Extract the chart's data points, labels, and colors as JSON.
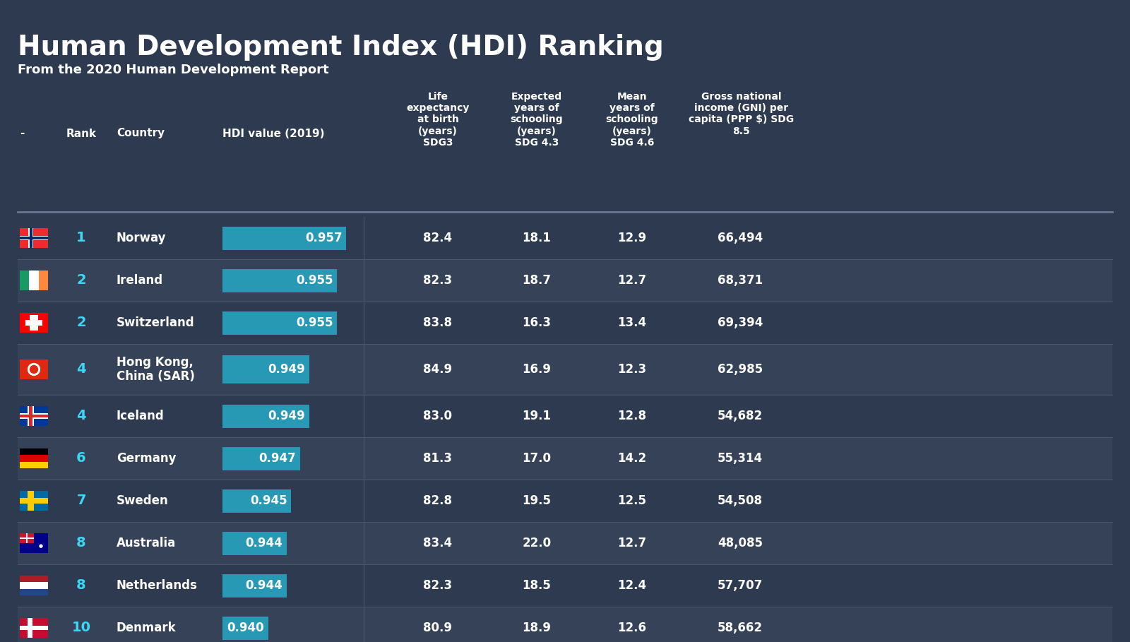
{
  "title": "Human Development Index (HDI) Ranking",
  "subtitle": "From the 2020 Human Development Report",
  "bg_color": "#2e3a50",
  "row_color_dark": "#2e3a50",
  "row_color_light": "#364257",
  "bar_color": "#2899b4",
  "text_color_white": "#ffffff",
  "text_color_cyan": "#3dd6f5",
  "separator_color": "#4a5570",
  "col_header_sep_color": "#6a7590",
  "columns_header": [
    "-",
    "Rank",
    "Country",
    "HDI value (2019)",
    "Life\nexpectancy\nat birth\n(years)\nSDG3",
    "Expected\nyears of\nschooling\n(years)\nSDG 4.3",
    "Mean\nyears of\nschooling\n(years)\nSDG 4.6",
    "Gross national\nincome (GNI) per\ncapita (PPP $) SDG\n8.5"
  ],
  "rows": [
    {
      "rank": "1",
      "country": "Norway",
      "hdi": 0.957,
      "life_exp": "82.4",
      "exp_school": "18.1",
      "mean_school": "12.9",
      "gni": "66,494",
      "flag": "norway"
    },
    {
      "rank": "2",
      "country": "Ireland",
      "hdi": 0.955,
      "life_exp": "82.3",
      "exp_school": "18.7",
      "mean_school": "12.7",
      "gni": "68,371",
      "flag": "ireland"
    },
    {
      "rank": "2",
      "country": "Switzerland",
      "hdi": 0.955,
      "life_exp": "83.8",
      "exp_school": "16.3",
      "mean_school": "13.4",
      "gni": "69,394",
      "flag": "switzerland"
    },
    {
      "rank": "4",
      "country": "Hong Kong,\nChina (SAR)",
      "hdi": 0.949,
      "life_exp": "84.9",
      "exp_school": "16.9",
      "mean_school": "12.3",
      "gni": "62,985",
      "flag": "hongkong"
    },
    {
      "rank": "4",
      "country": "Iceland",
      "hdi": 0.949,
      "life_exp": "83.0",
      "exp_school": "19.1",
      "mean_school": "12.8",
      "gni": "54,682",
      "flag": "iceland"
    },
    {
      "rank": "6",
      "country": "Germany",
      "hdi": 0.947,
      "life_exp": "81.3",
      "exp_school": "17.0",
      "mean_school": "14.2",
      "gni": "55,314",
      "flag": "germany"
    },
    {
      "rank": "7",
      "country": "Sweden",
      "hdi": 0.945,
      "life_exp": "82.8",
      "exp_school": "19.5",
      "mean_school": "12.5",
      "gni": "54,508",
      "flag": "sweden"
    },
    {
      "rank": "8",
      "country": "Australia",
      "hdi": 0.944,
      "life_exp": "83.4",
      "exp_school": "22.0",
      "mean_school": "12.7",
      "gni": "48,085",
      "flag": "australia"
    },
    {
      "rank": "8",
      "country": "Netherlands",
      "hdi": 0.944,
      "life_exp": "82.3",
      "exp_school": "18.5",
      "mean_school": "12.4",
      "gni": "57,707",
      "flag": "netherlands"
    },
    {
      "rank": "10",
      "country": "Denmark",
      "hdi": 0.94,
      "life_exp": "80.9",
      "exp_school": "18.9",
      "mean_school": "12.6",
      "gni": "58,662",
      "flag": "denmark"
    }
  ],
  "hdi_bar_min": 0.93,
  "hdi_bar_max": 0.96
}
